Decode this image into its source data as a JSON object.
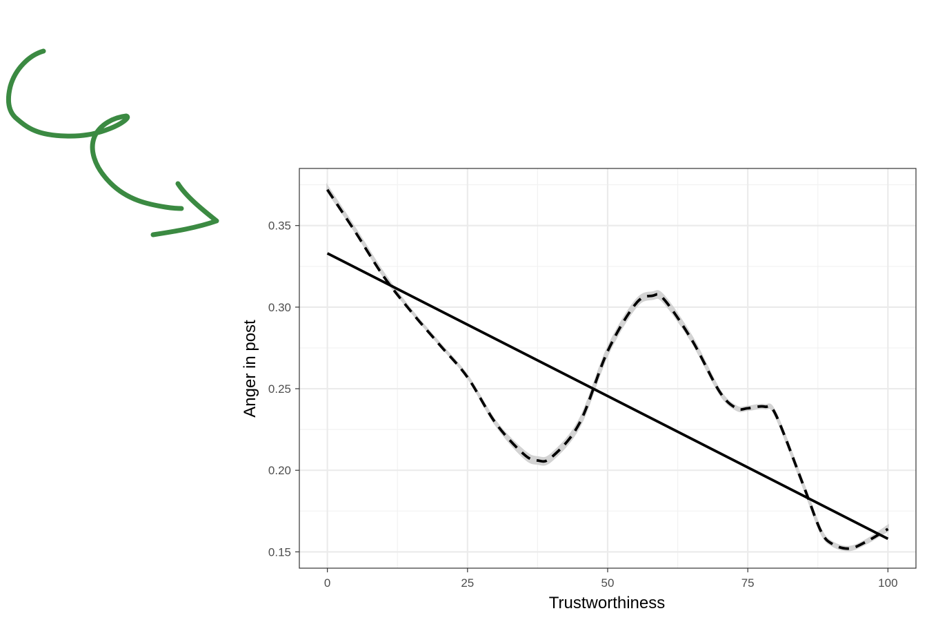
{
  "chart_data": {
    "type": "line",
    "title": "",
    "xlabel": "Trustworthiness",
    "ylabel": "Anger in post",
    "xlim": [
      -5,
      105
    ],
    "ylim": [
      0.14,
      0.385
    ],
    "x_ticks": [
      0,
      25,
      50,
      75,
      100
    ],
    "x_tick_labels": [
      "0",
      "25",
      "50",
      "75",
      "100"
    ],
    "x_minor_ticks": [
      12.5,
      37.5,
      62.5,
      87.5
    ],
    "y_ticks": [
      0.15,
      0.2,
      0.25,
      0.3,
      0.35
    ],
    "y_tick_labels": [
      "0.15",
      "0.20",
      "0.25",
      "0.30",
      "0.35"
    ],
    "y_minor_ticks": [
      0.175,
      0.225,
      0.275,
      0.325,
      0.375
    ],
    "grid": true,
    "legend": "none",
    "series": [
      {
        "style": "solid",
        "color": "#000000",
        "x": [
          0,
          100
        ],
        "y": [
          0.333,
          0.158
        ]
      },
      {
        "style": "dashed",
        "color": "#000000",
        "band_color": "#d3d3d3",
        "x": [
          0,
          5,
          10,
          15,
          20,
          25,
          30,
          35,
          37.5,
          40,
          45,
          50,
          55,
          58,
          60,
          65,
          70,
          73,
          75,
          78,
          80,
          85,
          88,
          90,
          93,
          96,
          100
        ],
        "y": [
          0.372,
          0.346,
          0.319,
          0.297,
          0.277,
          0.257,
          0.229,
          0.21,
          0.206,
          0.208,
          0.229,
          0.273,
          0.302,
          0.307,
          0.305,
          0.28,
          0.248,
          0.238,
          0.238,
          0.239,
          0.234,
          0.19,
          0.163,
          0.155,
          0.152,
          0.156,
          0.164
        ],
        "band_lower": [
          0.371,
          0.346,
          0.319,
          0.297,
          0.277,
          0.257,
          0.228,
          0.208,
          0.204,
          0.206,
          0.227,
          0.271,
          0.3,
          0.305,
          0.303,
          0.279,
          0.247,
          0.237,
          0.237,
          0.238,
          0.233,
          0.189,
          0.162,
          0.154,
          0.151,
          0.155,
          0.163
        ],
        "band_upper": [
          0.374,
          0.348,
          0.321,
          0.298,
          0.278,
          0.258,
          0.23,
          0.212,
          0.208,
          0.21,
          0.231,
          0.275,
          0.304,
          0.309,
          0.307,
          0.282,
          0.249,
          0.239,
          0.239,
          0.24,
          0.235,
          0.191,
          0.164,
          0.156,
          0.153,
          0.157,
          0.166
        ]
      }
    ]
  },
  "annotation": {
    "arrow_color": "#3b8a42"
  }
}
